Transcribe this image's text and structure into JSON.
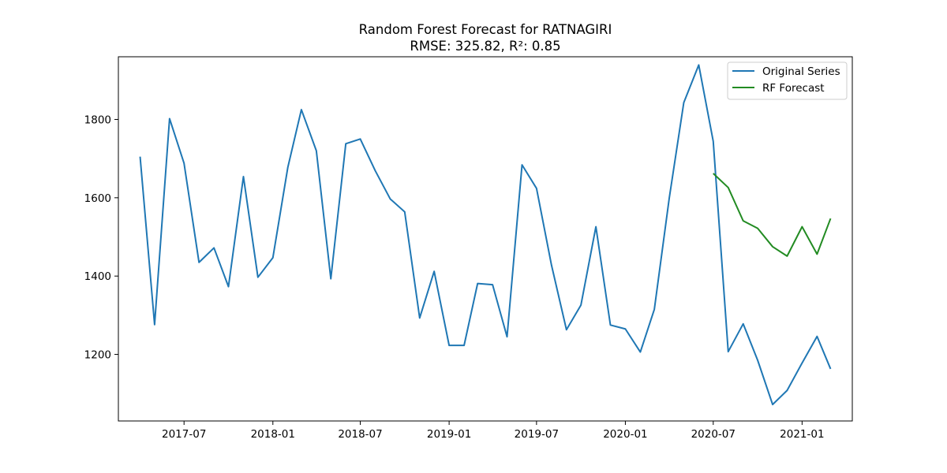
{
  "chart_data": {
    "type": "line",
    "title": "Random Forest Forecast for RATNAGIRI",
    "subtitle": "RMSE: 325.82, R²: 0.85",
    "xlabel": "",
    "ylabel": "",
    "x_range": [
      "2017-02-15",
      "2021-04-15"
    ],
    "ylim": [
      1030,
      1960
    ],
    "x_ticks": [
      "2017-07",
      "2018-01",
      "2018-07",
      "2019-01",
      "2019-07",
      "2020-01",
      "2020-07",
      "2021-01"
    ],
    "y_ticks": [
      1200,
      1400,
      1600,
      1800
    ],
    "grid": false,
    "legend_position": "top-right",
    "series": [
      {
        "name": "Original Series",
        "color": "#1f77b4",
        "x": [
          "2017-04",
          "2017-05",
          "2017-06",
          "2017-07",
          "2017-08",
          "2017-09",
          "2017-10",
          "2017-11",
          "2017-12",
          "2018-01",
          "2018-02",
          "2018-03",
          "2018-04",
          "2018-05",
          "2018-06",
          "2018-07",
          "2018-08",
          "2018-09",
          "2018-10",
          "2018-11",
          "2018-12",
          "2019-01",
          "2019-02",
          "2019-03",
          "2019-04",
          "2019-05",
          "2019-06",
          "2019-07",
          "2019-08",
          "2019-09",
          "2019-10",
          "2019-11",
          "2019-12",
          "2020-01",
          "2020-02",
          "2020-03",
          "2020-04",
          "2020-05",
          "2020-06",
          "2020-07",
          "2020-08",
          "2020-09",
          "2020-10",
          "2020-11",
          "2020-12",
          "2021-01",
          "2021-02",
          "2021-03"
        ],
        "values": [
          1705,
          1276,
          1802,
          1688,
          1435,
          1472,
          1373,
          1654,
          1397,
          1447,
          1678,
          1825,
          1720,
          1393,
          1738,
          1750,
          1669,
          1597,
          1564,
          1293,
          1412,
          1223,
          1223,
          1381,
          1378,
          1245,
          1684,
          1624,
          1428,
          1263,
          1326,
          1526,
          1275,
          1265,
          1206,
          1315,
          1600,
          1843,
          1939,
          1744,
          1207,
          1278,
          1185,
          1072,
          1108,
          1178,
          1246,
          1163
        ]
      },
      {
        "name": "RF Forecast",
        "color": "#228b22",
        "x": [
          "2020-07",
          "2020-08",
          "2020-09",
          "2020-10",
          "2020-11",
          "2020-12",
          "2021-01",
          "2021-02",
          "2021-03"
        ],
        "values": [
          1662,
          1626,
          1541,
          1522,
          1475,
          1451,
          1526,
          1456,
          1547
        ]
      }
    ]
  }
}
